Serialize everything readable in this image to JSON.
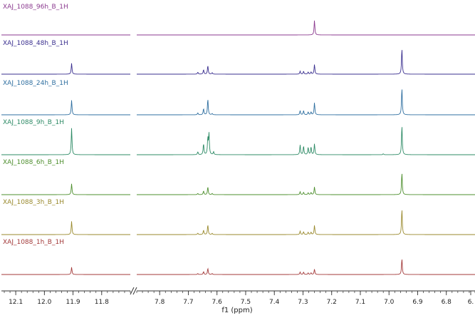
{
  "chart_data": {
    "type": "line",
    "chart_kind": "stacked 1H NMR spectra",
    "xlabel": "f1 (ppm)",
    "x_reversed": true,
    "axis_break": true,
    "xlim_left_segment": [
      12.15,
      11.7
    ],
    "xlim_right_segment": [
      7.88,
      6.7
    ],
    "ticks_left_segment": [
      "12.1",
      "12.0",
      "11.9",
      "11.8"
    ],
    "ticks_right_segment": [
      "7.8",
      "7.7",
      "7.6",
      "7.5",
      "7.4",
      "7.3",
      "7.2",
      "7.1",
      "7.0",
      "6.9",
      "6.8",
      "6."
    ],
    "grid": false,
    "series": [
      {
        "name": "XAJ_1088_96h_B_1H",
        "color": "#8B3A8F",
        "peaks": [
          {
            "x": 7.26,
            "y": 0.6
          }
        ]
      },
      {
        "name": "XAJ_1088_48h_B_1H",
        "color": "#3A2F8F",
        "peaks": [
          {
            "x": 11.905,
            "y": 0.45
          },
          {
            "x": 7.667,
            "y": 0.08
          },
          {
            "x": 7.647,
            "y": 0.18
          },
          {
            "x": 7.632,
            "y": 0.35
          },
          {
            "x": 7.617,
            "y": 0.06
          },
          {
            "x": 7.31,
            "y": 0.12
          },
          {
            "x": 7.298,
            "y": 0.12
          },
          {
            "x": 7.282,
            "y": 0.09
          },
          {
            "x": 7.272,
            "y": 0.09
          },
          {
            "x": 7.26,
            "y": 0.4
          },
          {
            "x": 6.955,
            "y": 1.05
          }
        ]
      },
      {
        "name": "XAJ_1088_24h_B_1H",
        "color": "#2F6FA0",
        "peaks": [
          {
            "x": 11.905,
            "y": 0.6
          },
          {
            "x": 7.667,
            "y": 0.08
          },
          {
            "x": 7.647,
            "y": 0.25
          },
          {
            "x": 7.632,
            "y": 0.65
          },
          {
            "x": 7.617,
            "y": 0.05
          },
          {
            "x": 7.31,
            "y": 0.17
          },
          {
            "x": 7.298,
            "y": 0.17
          },
          {
            "x": 7.282,
            "y": 0.12
          },
          {
            "x": 7.272,
            "y": 0.12
          },
          {
            "x": 7.26,
            "y": 0.5
          },
          {
            "x": 6.955,
            "y": 1.1
          }
        ]
      },
      {
        "name": "XAJ_1088_9h_B_1H",
        "color": "#2E8B66",
        "peaks": [
          {
            "x": 11.905,
            "y": 1.1
          },
          {
            "x": 7.667,
            "y": 0.12
          },
          {
            "x": 7.647,
            "y": 0.45
          },
          {
            "x": 7.632,
            "y": 0.65
          },
          {
            "x": 7.628,
            "y": 0.85
          },
          {
            "x": 7.612,
            "y": 0.12
          },
          {
            "x": 7.31,
            "y": 0.4
          },
          {
            "x": 7.298,
            "y": 0.35
          },
          {
            "x": 7.282,
            "y": 0.3
          },
          {
            "x": 7.272,
            "y": 0.32
          },
          {
            "x": 7.26,
            "y": 0.45
          },
          {
            "x": 7.02,
            "y": 0.04
          },
          {
            "x": 6.955,
            "y": 1.2
          }
        ]
      },
      {
        "name": "XAJ_1088_6h_B_1H",
        "color": "#4E8F2E",
        "peaks": [
          {
            "x": 11.905,
            "y": 0.45
          },
          {
            "x": 7.667,
            "y": 0.05
          },
          {
            "x": 7.647,
            "y": 0.15
          },
          {
            "x": 7.632,
            "y": 0.32
          },
          {
            "x": 7.617,
            "y": 0.05
          },
          {
            "x": 7.31,
            "y": 0.12
          },
          {
            "x": 7.298,
            "y": 0.1
          },
          {
            "x": 7.282,
            "y": 0.08
          },
          {
            "x": 7.272,
            "y": 0.09
          },
          {
            "x": 7.26,
            "y": 0.32
          },
          {
            "x": 6.955,
            "y": 0.9
          }
        ]
      },
      {
        "name": "XAJ_1088_3h_B_1H",
        "color": "#9A8A2E",
        "peaks": [
          {
            "x": 11.905,
            "y": 0.55
          },
          {
            "x": 7.667,
            "y": 0.06
          },
          {
            "x": 7.647,
            "y": 0.18
          },
          {
            "x": 7.632,
            "y": 0.4
          },
          {
            "x": 7.617,
            "y": 0.05
          },
          {
            "x": 7.31,
            "y": 0.14
          },
          {
            "x": 7.298,
            "y": 0.12
          },
          {
            "x": 7.282,
            "y": 0.1
          },
          {
            "x": 7.272,
            "y": 0.1
          },
          {
            "x": 7.26,
            "y": 0.38
          },
          {
            "x": 6.955,
            "y": 1.05
          }
        ]
      },
      {
        "name": "XAJ_1088_1h_B_1H",
        "color": "#A33A3A",
        "peaks": [
          {
            "x": 11.905,
            "y": 0.3
          },
          {
            "x": 7.667,
            "y": 0.04
          },
          {
            "x": 7.647,
            "y": 0.12
          },
          {
            "x": 7.632,
            "y": 0.25
          },
          {
            "x": 7.617,
            "y": 0.04
          },
          {
            "x": 7.31,
            "y": 0.1
          },
          {
            "x": 7.298,
            "y": 0.1
          },
          {
            "x": 7.282,
            "y": 0.07
          },
          {
            "x": 7.272,
            "y": 0.07
          },
          {
            "x": 7.26,
            "y": 0.22
          },
          {
            "x": 6.955,
            "y": 0.65
          }
        ]
      }
    ]
  }
}
